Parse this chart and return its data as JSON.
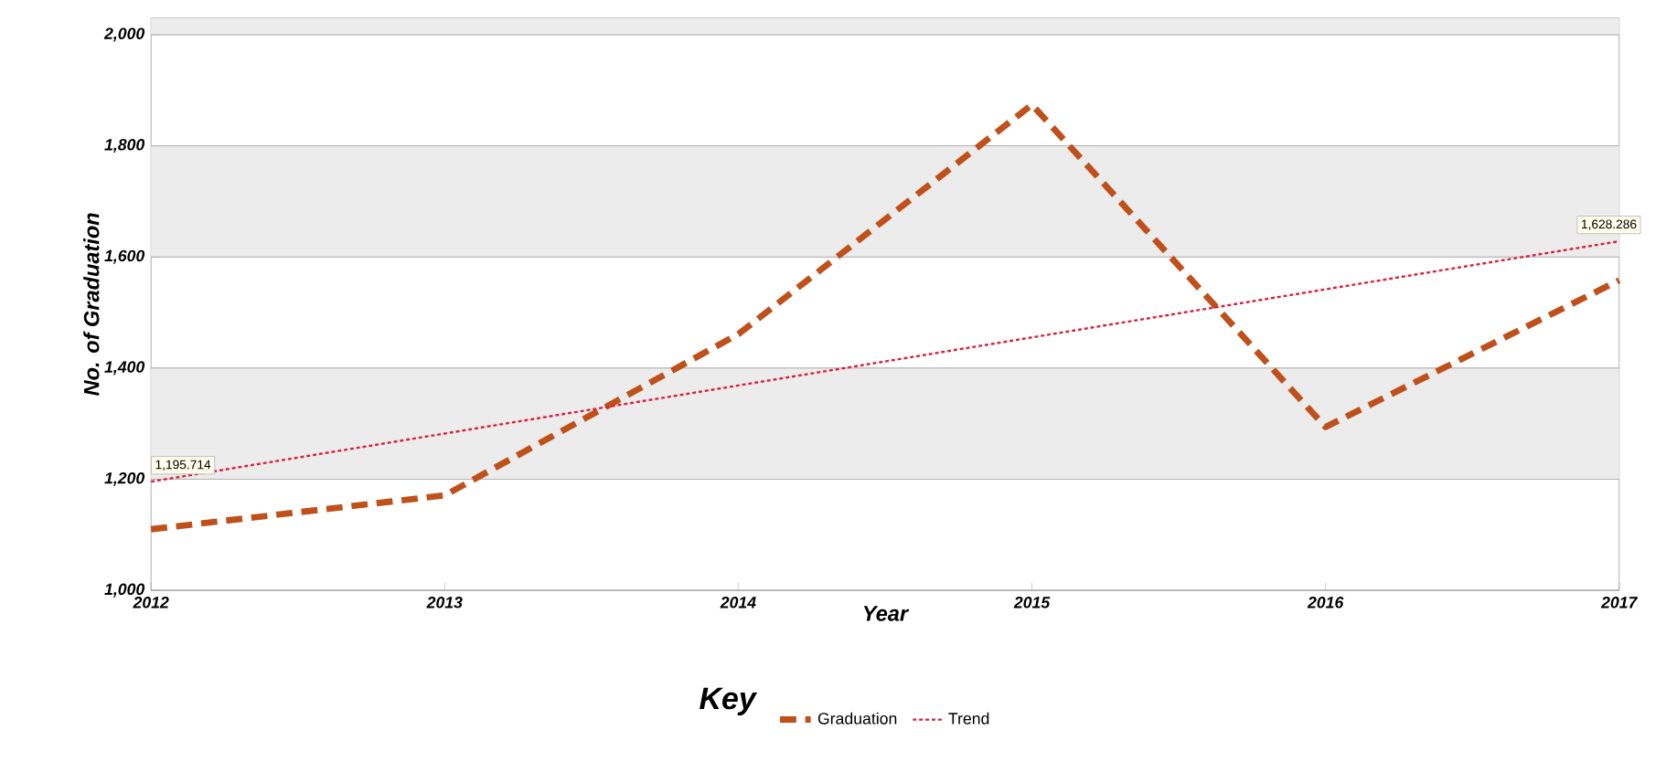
{
  "chart_data": {
    "type": "line",
    "xlabel": "Year",
    "ylabel": "No. of Graduation",
    "legend_title": "Key",
    "legend": "bottom",
    "grid": "y",
    "x": [
      2012,
      2013,
      2014,
      2015,
      2016,
      2017
    ],
    "series": [
      {
        "name": "Graduation",
        "color": "#c0501a",
        "line_style": "dashed",
        "values": [
          1110,
          1171,
          1461,
          1874,
          1294,
          1558
        ]
      },
      {
        "name": "Trend",
        "color": "#d9203a",
        "line_style": "dotted",
        "x": [
          2012,
          2017
        ],
        "values": [
          1195.714,
          1628.286
        ]
      }
    ],
    "xlim": [
      2012,
      2017
    ],
    "xticks": [
      2012,
      2013,
      2014,
      2015,
      2016,
      2017
    ],
    "ylim": [
      1000,
      2030
    ],
    "yticks": [
      {
        "value": 1000,
        "label": "1,000"
      },
      {
        "value": 1200,
        "label": "1,200"
      },
      {
        "value": 1400,
        "label": "1,400"
      },
      {
        "value": 1600,
        "label": "1,600"
      },
      {
        "value": 1800,
        "label": "1,800"
      },
      {
        "value": 2000,
        "label": "2,000"
      }
    ],
    "bands": [
      {
        "axis": "y",
        "from": 1200,
        "to": 1400,
        "color": "#ececec"
      },
      {
        "axis": "y",
        "from": 1600,
        "to": 1800,
        "color": "#ececec"
      },
      {
        "axis": "y",
        "from": 2000,
        "to": 2030,
        "color": "#ececec"
      }
    ],
    "annotations": [
      {
        "text": "1,195.714",
        "x": 2012,
        "y": 1195.714
      },
      {
        "text": "1,628.286",
        "x": 2017,
        "y": 1628.286
      }
    ]
  }
}
